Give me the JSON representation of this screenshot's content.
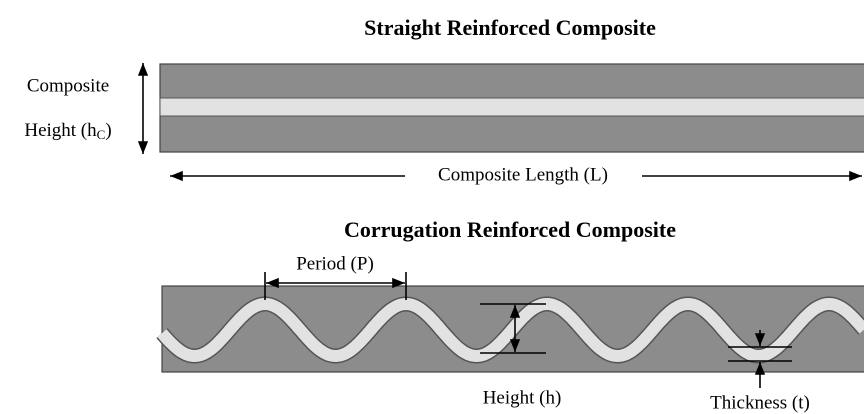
{
  "straight": {
    "title": "Straight Reinforced Composite",
    "height_label_line1": "Composite",
    "height_label_line2": "Height (h",
    "height_label_sub": "C",
    "height_label_end": ")",
    "length_label": "Composite Length (L)"
  },
  "corrugated": {
    "title": "Corrugation Reinforced Composite",
    "period_label": "Period (P)",
    "height_label": "Height (h)",
    "thickness_label": "Thickness (t)"
  }
}
